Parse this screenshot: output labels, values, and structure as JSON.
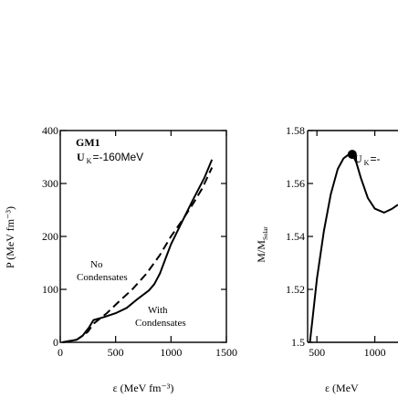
{
  "chart_data": [
    {
      "type": "line",
      "panel": "left",
      "annotation_title": "GM1",
      "annotation_param": "U K =-160MeV",
      "annotation_param_main": "U",
      "annotation_param_sub": "K",
      "annotation_param_value": "=-160MeV",
      "xlabel": "ε (MeV fm⁻³)",
      "ylabel": "P (MeV fm⁻³)",
      "xlim": [
        0,
        1500
      ],
      "ylim": [
        0,
        400
      ],
      "xticks": [
        0,
        500,
        1000,
        1500
      ],
      "xtick_labels": [
        "0",
        "500",
        "1000",
        "1500"
      ],
      "yticks": [
        0,
        100,
        200,
        300,
        400
      ],
      "ytick_labels": [
        "0",
        "100",
        "200",
        "300",
        "400"
      ],
      "grid": false,
      "series": [
        {
          "name": "No Condensates",
          "label_lines": [
            "No",
            "Condensates"
          ],
          "style": "dashed",
          "color": "#000000",
          "x": [
            20,
            150,
            250,
            300,
            420,
            520,
            650,
            780,
            900,
            1000,
            1100,
            1200,
            1280,
            1370
          ],
          "y": [
            0,
            5,
            20,
            35,
            55,
            75,
            100,
            130,
            165,
            200,
            230,
            262,
            290,
            330
          ]
        },
        {
          "name": "With Condensates",
          "label_lines": [
            "With",
            "Condensates"
          ],
          "style": "solid",
          "color": "#000000",
          "x": [
            20,
            150,
            200,
            260,
            300,
            400,
            500,
            600,
            700,
            800,
            850,
            900,
            950,
            1000,
            1100,
            1200,
            1300,
            1370
          ],
          "y": [
            0,
            5,
            12,
            28,
            42,
            48,
            55,
            65,
            82,
            98,
            110,
            130,
            158,
            185,
            228,
            270,
            310,
            345
          ]
        }
      ]
    },
    {
      "type": "line",
      "panel": "right",
      "annotation_param_main": "U",
      "annotation_param_sub": "K",
      "annotation_param_value": "=-",
      "ylabel": "M/M",
      "ylabel_sub": "Solar",
      "xlabel_visible": "ε (MeV",
      "xlim": [
        420,
        1200
      ],
      "ylim": [
        1.5,
        1.58
      ],
      "xticks": [
        500,
        1000
      ],
      "xtick_labels": [
        "500",
        "1000"
      ],
      "yticks": [
        1.5,
        1.52,
        1.54,
        1.56,
        1.58
      ],
      "ytick_labels": [
        "1.5",
        "1.52",
        "1.54",
        "1.56",
        "1.58"
      ],
      "grid": false,
      "marker_point": {
        "x": 805,
        "y": 1.571
      },
      "series": [
        {
          "style": "solid",
          "color": "#000000",
          "x": [
            440,
            460,
            500,
            560,
            620,
            680,
            730,
            770,
            805,
            840,
            880,
            940,
            1000,
            1080,
            1150,
            1200
          ],
          "y": [
            1.5,
            1.508,
            1.524,
            1.542,
            1.556,
            1.5655,
            1.5695,
            1.5708,
            1.571,
            1.568,
            1.562,
            1.5545,
            1.5505,
            1.549,
            1.5505,
            1.552
          ]
        }
      ]
    }
  ]
}
